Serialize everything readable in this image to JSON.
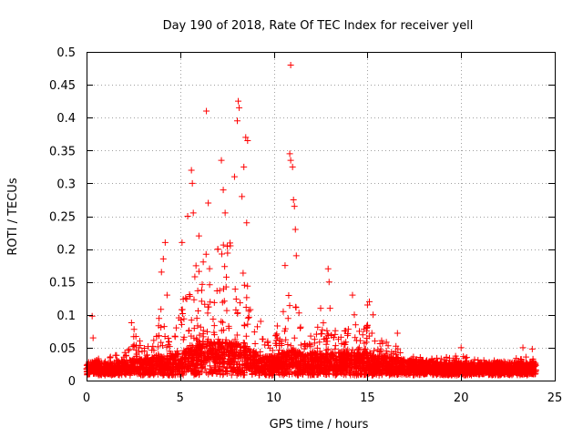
{
  "chart_data": {
    "type": "scatter",
    "title": "Day 190 of 2018, Rate Of TEC Index for receiver yell",
    "xlabel": "GPS time / hours",
    "ylabel": "ROTI / TECUs",
    "xlim": [
      0,
      25
    ],
    "ylim": [
      0,
      0.5
    ],
    "xticks": [
      0,
      5,
      10,
      15,
      20,
      25
    ],
    "xtick_labels": [
      "0",
      "5",
      "10",
      "15",
      "20",
      "25"
    ],
    "yticks": [
      0,
      0.05,
      0.1,
      0.15,
      0.2,
      0.25,
      0.3,
      0.35,
      0.4,
      0.45,
      0.5
    ],
    "ytick_labels": [
      "0",
      "0.05",
      "0.1",
      "0.15",
      "0.2",
      "0.25",
      "0.3",
      "0.35",
      "0.4",
      "0.45",
      "0.5"
    ],
    "grid": true,
    "marker": "+",
    "marker_color": "#ff0000",
    "notable_points": [
      {
        "x": 0.3,
        "y": 0.098
      },
      {
        "x": 0.35,
        "y": 0.065
      },
      {
        "x": 2.4,
        "y": 0.088
      },
      {
        "x": 4.0,
        "y": 0.165
      },
      {
        "x": 4.1,
        "y": 0.185
      },
      {
        "x": 4.2,
        "y": 0.21
      },
      {
        "x": 4.3,
        "y": 0.13
      },
      {
        "x": 5.1,
        "y": 0.21
      },
      {
        "x": 5.4,
        "y": 0.25
      },
      {
        "x": 5.6,
        "y": 0.32
      },
      {
        "x": 5.65,
        "y": 0.3
      },
      {
        "x": 5.7,
        "y": 0.255
      },
      {
        "x": 6.0,
        "y": 0.22
      },
      {
        "x": 6.4,
        "y": 0.41
      },
      {
        "x": 6.5,
        "y": 0.27
      },
      {
        "x": 7.2,
        "y": 0.335
      },
      {
        "x": 7.3,
        "y": 0.29
      },
      {
        "x": 7.4,
        "y": 0.255
      },
      {
        "x": 7.9,
        "y": 0.31
      },
      {
        "x": 8.1,
        "y": 0.425
      },
      {
        "x": 8.15,
        "y": 0.415
      },
      {
        "x": 8.05,
        "y": 0.395
      },
      {
        "x": 8.3,
        "y": 0.28
      },
      {
        "x": 8.4,
        "y": 0.325
      },
      {
        "x": 8.5,
        "y": 0.37
      },
      {
        "x": 8.6,
        "y": 0.365
      },
      {
        "x": 8.55,
        "y": 0.24
      },
      {
        "x": 9.3,
        "y": 0.09
      },
      {
        "x": 10.6,
        "y": 0.175
      },
      {
        "x": 10.9,
        "y": 0.48
      },
      {
        "x": 10.85,
        "y": 0.345
      },
      {
        "x": 10.9,
        "y": 0.335
      },
      {
        "x": 11.0,
        "y": 0.325
      },
      {
        "x": 11.05,
        "y": 0.275
      },
      {
        "x": 11.1,
        "y": 0.265
      },
      {
        "x": 11.15,
        "y": 0.23
      },
      {
        "x": 11.2,
        "y": 0.19
      },
      {
        "x": 12.5,
        "y": 0.11
      },
      {
        "x": 12.9,
        "y": 0.17
      },
      {
        "x": 12.95,
        "y": 0.15
      },
      {
        "x": 13.0,
        "y": 0.11
      },
      {
        "x": 14.2,
        "y": 0.13
      },
      {
        "x": 14.3,
        "y": 0.1
      },
      {
        "x": 15.0,
        "y": 0.115
      },
      {
        "x": 15.1,
        "y": 0.12
      },
      {
        "x": 15.3,
        "y": 0.1
      },
      {
        "x": 16.6,
        "y": 0.072
      },
      {
        "x": 20.0,
        "y": 0.05
      },
      {
        "x": 23.3,
        "y": 0.05
      },
      {
        "x": 23.8,
        "y": 0.048
      }
    ],
    "envelope": [
      {
        "x": 0.0,
        "base": 0.02,
        "peak": 0.035
      },
      {
        "x": 1.0,
        "base": 0.02,
        "peak": 0.035
      },
      {
        "x": 2.0,
        "base": 0.022,
        "peak": 0.045
      },
      {
        "x": 2.5,
        "base": 0.025,
        "peak": 0.085
      },
      {
        "x": 3.0,
        "base": 0.025,
        "peak": 0.05
      },
      {
        "x": 3.5,
        "base": 0.028,
        "peak": 0.06
      },
      {
        "x": 4.0,
        "base": 0.03,
        "peak": 0.12
      },
      {
        "x": 4.5,
        "base": 0.03,
        "peak": 0.07
      },
      {
        "x": 5.0,
        "base": 0.035,
        "peak": 0.1
      },
      {
        "x": 5.5,
        "base": 0.045,
        "peak": 0.2
      },
      {
        "x": 6.0,
        "base": 0.05,
        "peak": 0.19
      },
      {
        "x": 6.5,
        "base": 0.055,
        "peak": 0.2
      },
      {
        "x": 7.0,
        "base": 0.055,
        "peak": 0.21
      },
      {
        "x": 7.5,
        "base": 0.05,
        "peak": 0.22
      },
      {
        "x": 8.0,
        "base": 0.05,
        "peak": 0.2
      },
      {
        "x": 8.5,
        "base": 0.045,
        "peak": 0.17
      },
      {
        "x": 9.0,
        "base": 0.035,
        "peak": 0.09
      },
      {
        "x": 9.5,
        "base": 0.03,
        "peak": 0.07
      },
      {
        "x": 10.0,
        "base": 0.03,
        "peak": 0.06
      },
      {
        "x": 10.5,
        "base": 0.035,
        "peak": 0.13
      },
      {
        "x": 11.0,
        "base": 0.04,
        "peak": 0.16
      },
      {
        "x": 11.5,
        "base": 0.035,
        "peak": 0.08
      },
      {
        "x": 12.0,
        "base": 0.035,
        "peak": 0.07
      },
      {
        "x": 12.5,
        "base": 0.035,
        "peak": 0.1
      },
      {
        "x": 13.0,
        "base": 0.035,
        "peak": 0.085
      },
      {
        "x": 13.5,
        "base": 0.035,
        "peak": 0.07
      },
      {
        "x": 14.0,
        "base": 0.035,
        "peak": 0.08
      },
      {
        "x": 14.5,
        "base": 0.035,
        "peak": 0.09
      },
      {
        "x": 15.0,
        "base": 0.035,
        "peak": 0.09
      },
      {
        "x": 15.5,
        "base": 0.03,
        "peak": 0.065
      },
      {
        "x": 16.0,
        "base": 0.03,
        "peak": 0.06
      },
      {
        "x": 16.5,
        "base": 0.028,
        "peak": 0.06
      },
      {
        "x": 17.0,
        "base": 0.025,
        "peak": 0.045
      },
      {
        "x": 18.0,
        "base": 0.022,
        "peak": 0.038
      },
      {
        "x": 19.0,
        "base": 0.02,
        "peak": 0.035
      },
      {
        "x": 20.0,
        "base": 0.02,
        "peak": 0.04
      },
      {
        "x": 21.0,
        "base": 0.02,
        "peak": 0.032
      },
      {
        "x": 22.0,
        "base": 0.02,
        "peak": 0.03
      },
      {
        "x": 23.0,
        "base": 0.02,
        "peak": 0.035
      },
      {
        "x": 24.0,
        "base": 0.02,
        "peak": 0.04
      }
    ],
    "x_data_end": 24.0
  }
}
